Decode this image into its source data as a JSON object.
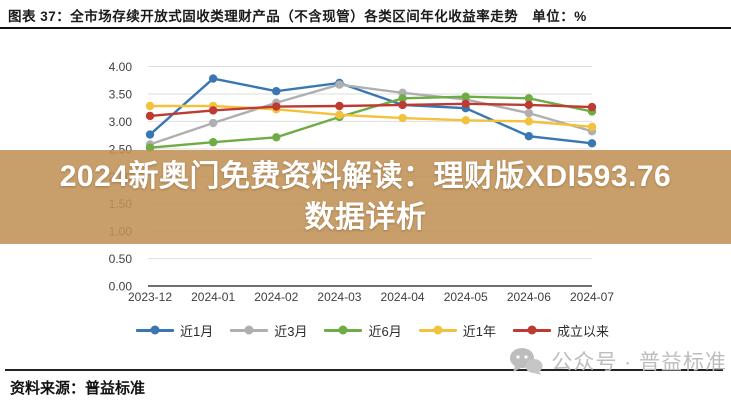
{
  "title": "图表 37：全市场存续开放式固收类理财产品（不含现管）各类区间年化收益率走势　单位：%",
  "chart_data": {
    "type": "line",
    "x": [
      "2023-12",
      "2024-01",
      "2024-02",
      "2024-03",
      "2024-04",
      "2024-05",
      "2024-06",
      "2024-07"
    ],
    "series": [
      {
        "name": "近1月",
        "color": "#3876B4",
        "values": [
          2.76,
          3.78,
          3.55,
          3.7,
          3.3,
          3.24,
          2.73,
          2.6
        ]
      },
      {
        "name": "近3月",
        "color": "#AFAFAF",
        "values": [
          2.58,
          2.97,
          3.34,
          3.67,
          3.52,
          3.4,
          3.15,
          2.82
        ]
      },
      {
        "name": "近6月",
        "color": "#6EAC44",
        "values": [
          2.52,
          2.62,
          2.71,
          3.08,
          3.42,
          3.45,
          3.42,
          3.18
        ]
      },
      {
        "name": "近1年",
        "color": "#F2C23E",
        "values": [
          3.28,
          3.28,
          3.22,
          3.12,
          3.06,
          3.02,
          3.0,
          2.9
        ]
      },
      {
        "name": "成立以来",
        "color": "#BE3B33",
        "values": [
          3.1,
          3.2,
          3.27,
          3.28,
          3.3,
          3.32,
          3.3,
          3.26
        ]
      }
    ],
    "ylim": [
      0,
      4
    ],
    "ytick_step": 0.5,
    "ytick_format": "0.00",
    "grid": true,
    "legend_position": "bottom",
    "gridline_color": "#dedede",
    "axis_color": "#404040"
  },
  "overlay": {
    "line1": "2024新奥门免费资料解读：理财版XDI593.76",
    "line2": "数据详析",
    "bg_rgba": "rgba(192,145,85,0.88)"
  },
  "watermark": {
    "text": "公众号 · 普益标准",
    "color": "#bdbdbd"
  },
  "source": {
    "text": "资料来源：普益标准"
  }
}
